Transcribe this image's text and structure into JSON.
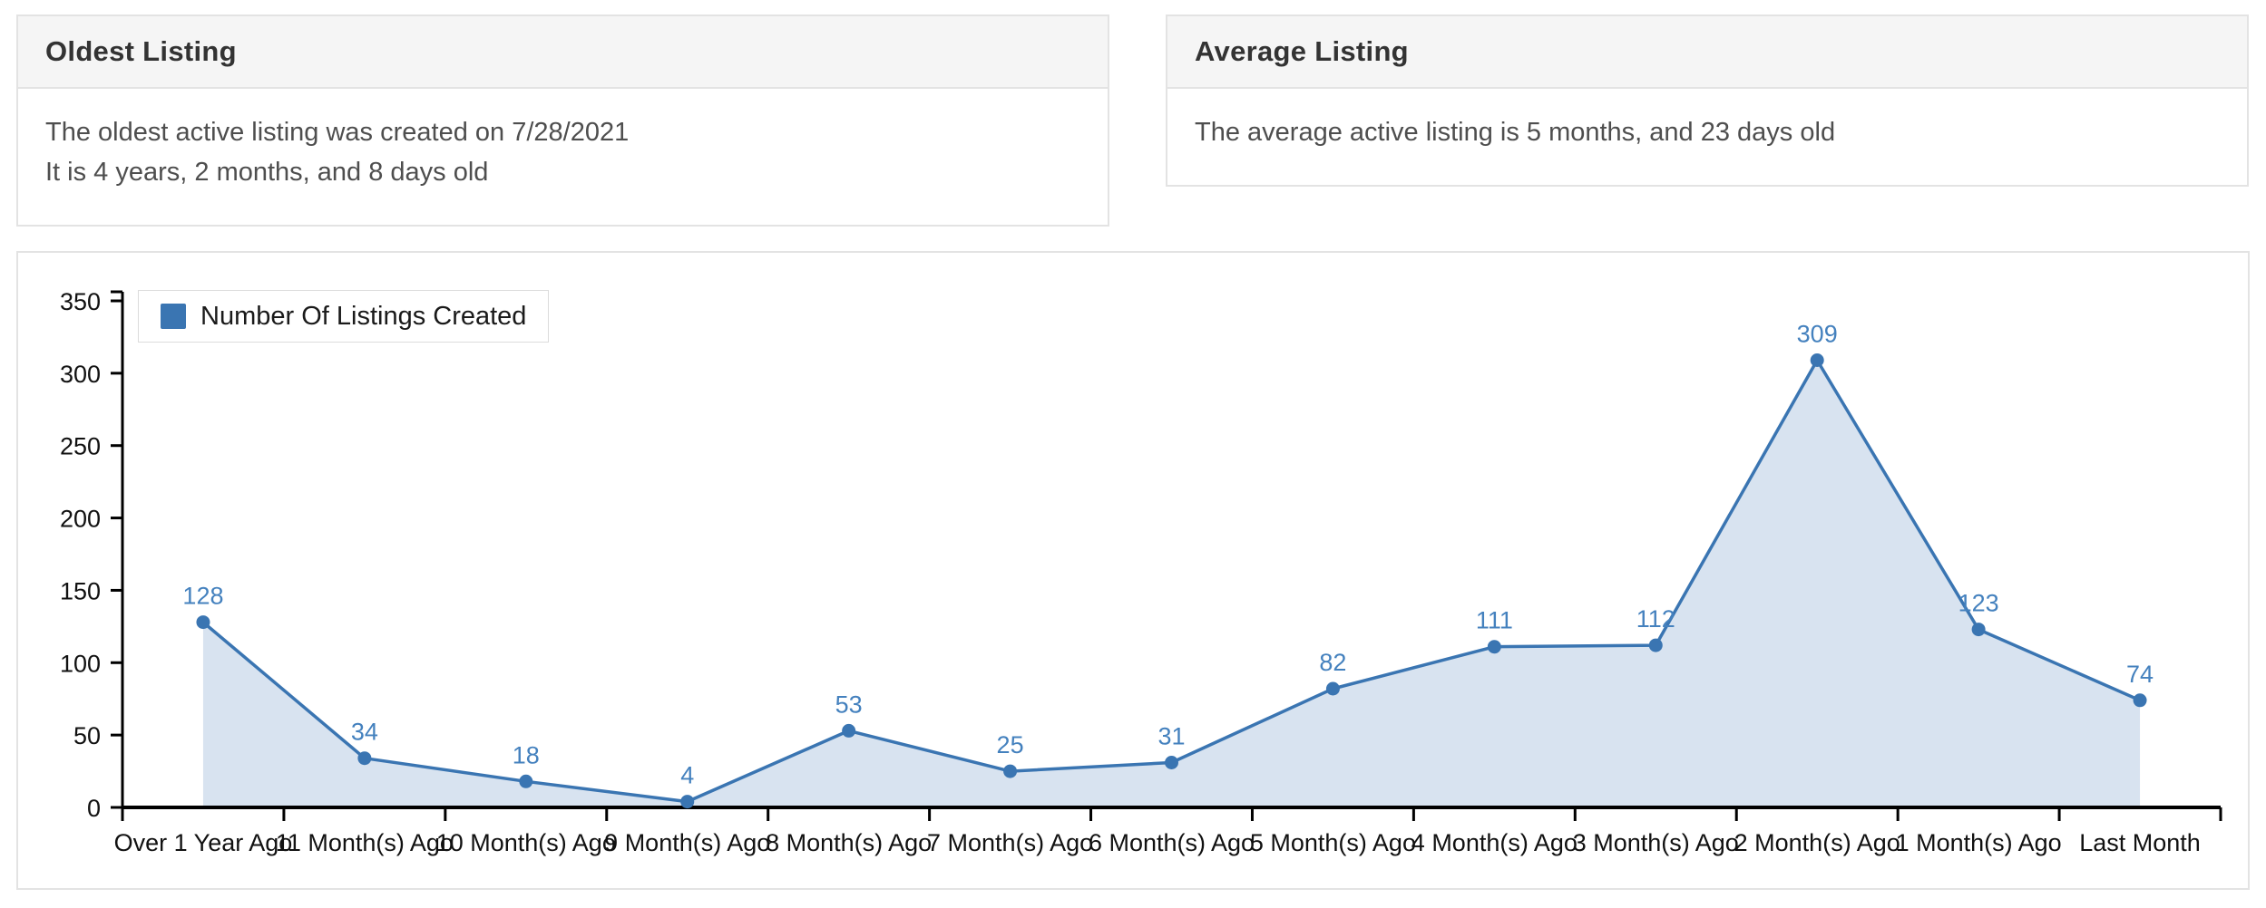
{
  "cards": {
    "oldest": {
      "title": "Oldest Listing",
      "line1": "The oldest active listing was created on 7/28/2021",
      "line2": "It is 4 years, 2 months, and 8 days old"
    },
    "average": {
      "title": "Average Listing",
      "line1": "The average active listing is 5 months, and 23 days old"
    }
  },
  "chart_data": {
    "type": "area",
    "legend": [
      "Number Of Listings Created"
    ],
    "legend_position": "top-left",
    "categories": [
      "Over 1 Year Ago",
      "11 Month(s) Ago",
      "10 Month(s) Ago",
      "9 Month(s) Ago",
      "8 Month(s) Ago",
      "7 Month(s) Ago",
      "6 Month(s) Ago",
      "5 Month(s) Ago",
      "4 Month(s) Ago",
      "3 Month(s) Ago",
      "2 Month(s) Ago",
      "1 Month(s) Ago",
      "Last Month"
    ],
    "values": [
      128,
      34,
      18,
      4,
      53,
      25,
      31,
      82,
      111,
      112,
      309,
      123,
      74
    ],
    "xlabel": "",
    "ylabel": "",
    "ylim": [
      0,
      350
    ],
    "ytick_step": 50,
    "grid": false,
    "colors": {
      "line": "#3a75b2",
      "point": "#3a75b2",
      "area_fill": "#d8e3f0",
      "value_label": "#4481be",
      "axis": "#000000",
      "axis_text": "#111111"
    }
  }
}
